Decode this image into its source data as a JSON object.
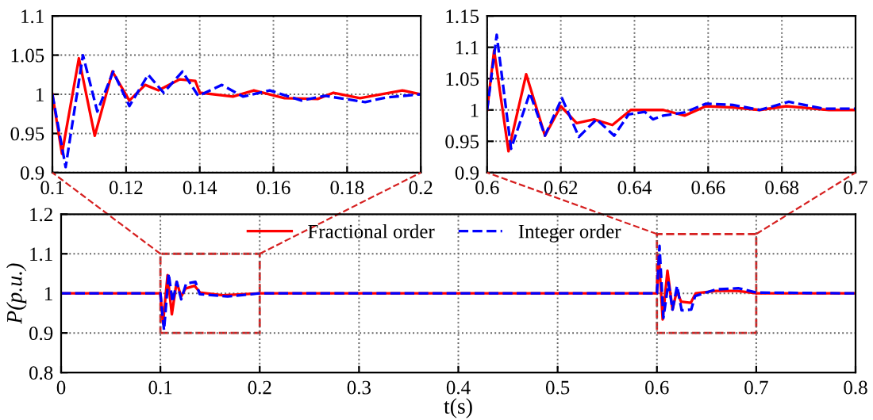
{
  "chart_data": [
    {
      "type": "line",
      "xlim": [
        0.1,
        0.2
      ],
      "xticks": [
        0.1,
        0.12,
        0.14,
        0.16,
        0.18,
        0.2
      ],
      "ylim": [
        0.9,
        1.1
      ],
      "yticks": [
        0.9,
        0.95,
        1,
        1.05,
        1.1
      ],
      "grid": true,
      "series": [
        {
          "color": "#ff0000",
          "line_style": "solid",
          "x": [
            0.1,
            0.1026,
            0.1072,
            0.1115,
            0.1163,
            0.1209,
            0.1252,
            0.1288,
            0.1345,
            0.1388,
            0.14,
            0.149,
            0.1547,
            0.163,
            0.172,
            0.1763,
            0.1835,
            0.195,
            0.2
          ],
          "values": [
            1.0,
            0.924,
            1.046,
            0.947,
            1.029,
            0.992,
            1.012,
            1.005,
            1.019,
            1.017,
            1.002,
            0.997,
            1.005,
            0.995,
            0.994,
            1.002,
            0.995,
            1.005,
            1.0
          ]
        },
        {
          "color": "#0000ff",
          "line_style": "dashed",
          "x": [
            0.1,
            0.1036,
            0.1083,
            0.1122,
            0.1165,
            0.1209,
            0.126,
            0.1302,
            0.1353,
            0.1396,
            0.146,
            0.1518,
            0.159,
            0.1676,
            0.174,
            0.1849,
            0.1906,
            0.2
          ],
          "values": [
            1.0,
            0.907,
            1.05,
            0.978,
            1.029,
            0.985,
            1.025,
            1.002,
            1.029,
            0.998,
            1.012,
            0.997,
            1.005,
            0.992,
            0.998,
            0.99,
            0.996,
            1.0
          ]
        }
      ]
    },
    {
      "type": "line",
      "xlim": [
        0.6,
        0.7
      ],
      "xticks": [
        0.6,
        0.62,
        0.64,
        0.66,
        0.68,
        0.7
      ],
      "ylim": [
        0.9,
        1.15
      ],
      "yticks": [
        0.9,
        0.95,
        1,
        1.05,
        1.1,
        1.15
      ],
      "grid": true,
      "series": [
        {
          "color": "#ff0000",
          "line_style": "solid",
          "x": [
            0.6,
            0.6019,
            0.6058,
            0.6106,
            0.6157,
            0.62,
            0.6243,
            0.629,
            0.634,
            0.639,
            0.6478,
            0.6536,
            0.6594,
            0.6667,
            0.674,
            0.6812,
            0.6928,
            0.7
          ],
          "values": [
            1.0,
            1.095,
            0.934,
            1.057,
            0.959,
            1.006,
            0.979,
            0.985,
            0.976,
            1.0,
            1.0,
            0.991,
            1.006,
            1.004,
            1.0,
            1.006,
            1.0,
            1.0
          ]
        },
        {
          "color": "#0000ff",
          "line_style": "dashed",
          "x": [
            0.6,
            0.6026,
            0.6065,
            0.6116,
            0.6157,
            0.6203,
            0.6249,
            0.6297,
            0.6345,
            0.6384,
            0.6428,
            0.645,
            0.6478,
            0.6536,
            0.6594,
            0.6667,
            0.674,
            0.6819,
            0.6913,
            0.7
          ],
          "values": [
            1.0,
            1.12,
            0.938,
            1.027,
            0.959,
            1.019,
            0.957,
            0.985,
            0.959,
            0.993,
            0.997,
            0.985,
            0.991,
            0.996,
            1.01,
            1.008,
            1.0,
            1.013,
            1.002,
            1.002
          ]
        }
      ]
    },
    {
      "type": "line",
      "xlabel": "t(s)",
      "ylabel": "P(p.u.)",
      "xlim": [
        0,
        0.8
      ],
      "xticks": [
        0,
        0.1,
        0.2,
        0.3,
        0.4,
        0.5,
        0.6,
        0.7,
        0.8
      ],
      "ylim": [
        0.8,
        1.2
      ],
      "yticks": [
        0.8,
        0.9,
        1,
        1.1,
        1.2
      ],
      "grid": true,
      "legend": "top",
      "series": [
        {
          "name": "Fractional order",
          "color": "#ff0000",
          "line_style": "solid",
          "x": [
            0,
            0.1,
            0.1026,
            0.1072,
            0.1115,
            0.1163,
            0.1209,
            0.1252,
            0.1345,
            0.14,
            0.163,
            0.2,
            0.3,
            0.4,
            0.5,
            0.6,
            0.6019,
            0.6058,
            0.6106,
            0.6157,
            0.62,
            0.6243,
            0.634,
            0.639,
            0.6594,
            0.6812,
            0.7,
            0.8
          ],
          "values": [
            1.0,
            1.0,
            0.924,
            1.046,
            0.947,
            1.029,
            0.992,
            1.012,
            1.019,
            1.002,
            0.995,
            1.0,
            1.0,
            1.0,
            1.0,
            1.0,
            1.095,
            0.934,
            1.057,
            0.959,
            1.006,
            0.979,
            0.976,
            1.0,
            1.006,
            1.006,
            1.0,
            1.0
          ]
        },
        {
          "name": "Integer order",
          "color": "#0000ff",
          "line_style": "dashed",
          "x": [
            0,
            0.1,
            0.1036,
            0.1083,
            0.1122,
            0.1165,
            0.1209,
            0.126,
            0.1353,
            0.1396,
            0.1676,
            0.2,
            0.3,
            0.4,
            0.5,
            0.6,
            0.6026,
            0.6065,
            0.6116,
            0.6157,
            0.6203,
            0.6249,
            0.6345,
            0.6384,
            0.6594,
            0.6819,
            0.7,
            0.8
          ],
          "values": [
            1.0,
            1.0,
            0.907,
            1.05,
            0.978,
            1.029,
            0.985,
            1.025,
            1.029,
            0.998,
            0.992,
            1.0,
            1.0,
            1.0,
            1.0,
            1.0,
            1.12,
            0.938,
            1.027,
            0.959,
            1.019,
            0.957,
            0.959,
            0.993,
            1.01,
            1.013,
            1.002,
            1.0
          ]
        }
      ]
    }
  ]
}
